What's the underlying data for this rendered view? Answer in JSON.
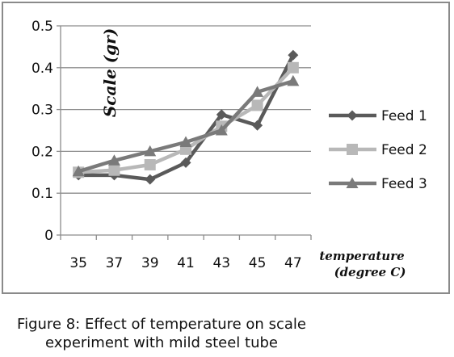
{
  "chart_data": {
    "type": "line",
    "title": "",
    "xlabel_lines": [
      "temperature",
      "(degree C)"
    ],
    "ylabel": "Scale (gr)",
    "categories": [
      "35",
      "37",
      "39",
      "41",
      "43",
      "45",
      "47"
    ],
    "ylim": [
      0,
      0.5
    ],
    "yticks": [
      "0",
      "0.1",
      "0.2",
      "0.3",
      "0.4",
      "0.5"
    ],
    "grid": true,
    "legend_position": "right",
    "series": [
      {
        "name": "Feed 1",
        "marker": "diamond",
        "color": "#5a5a5a",
        "values": [
          0.143,
          0.143,
          0.133,
          0.173,
          0.288,
          0.262,
          0.43
        ]
      },
      {
        "name": "Feed 2",
        "marker": "square",
        "color": "#b8b8b8",
        "values": [
          0.15,
          0.155,
          0.168,
          0.205,
          0.26,
          0.31,
          0.4
        ]
      },
      {
        "name": "Feed 3",
        "marker": "triangle",
        "color": "#7a7a7a",
        "values": [
          0.152,
          0.178,
          0.2,
          0.222,
          0.25,
          0.342,
          0.368
        ]
      }
    ]
  },
  "caption": {
    "line1": "Figure 8: Effect of temperature on scale",
    "line2": "experiment with mild steel tube"
  }
}
